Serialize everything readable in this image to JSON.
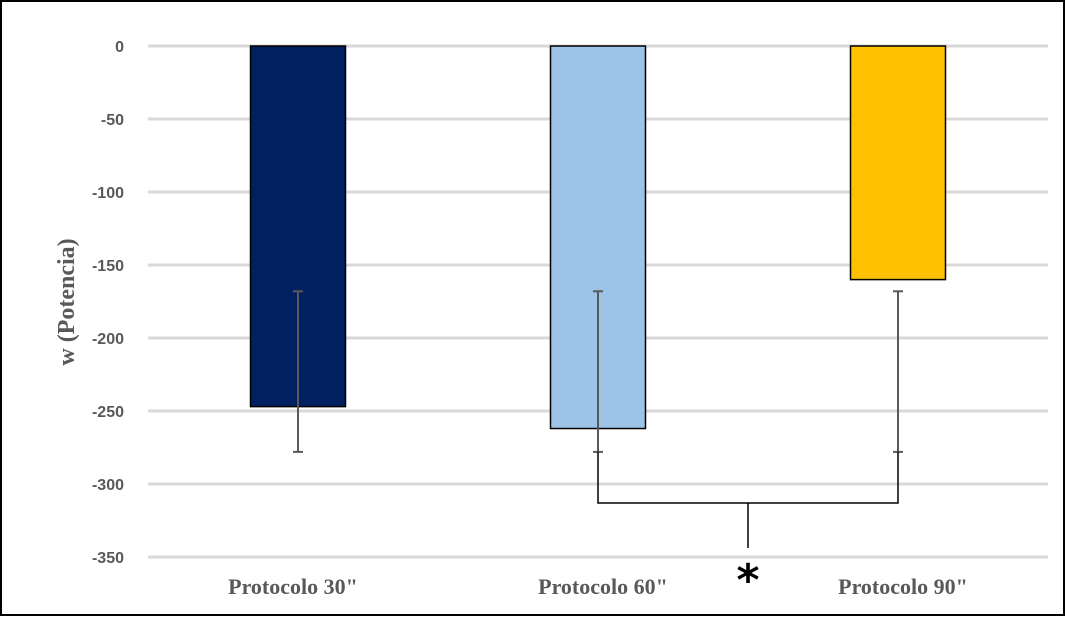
{
  "chart_data": {
    "type": "bar",
    "categories": [
      "Protocolo  30\"",
      "Protocolo 60\"",
      "Protocolo 90\""
    ],
    "values": [
      -247,
      -262,
      -160
    ],
    "error_bars": [
      {
        "low": -278,
        "high": -168
      },
      {
        "low": -278,
        "high": -168
      },
      {
        "low": -278,
        "high": -168
      }
    ],
    "colors": [
      "#002060",
      "#9DC3E6",
      "#FFC000"
    ],
    "bar_border_color": "#000000",
    "ylabel": "w (Potencia)",
    "xlabel": "",
    "title": "",
    "ylim": [
      -350,
      0
    ],
    "yticks": [
      0,
      -50,
      -100,
      -150,
      -200,
      -250,
      -300,
      -350
    ],
    "ytick_labels": [
      "0",
      "-50",
      "-100",
      "-150",
      "-200",
      "-250",
      "-300",
      "-350"
    ],
    "grid": true,
    "grid_color": "#D9D9D9",
    "significance": {
      "between": [
        1,
        2
      ],
      "level": -313,
      "marker": "*"
    }
  }
}
